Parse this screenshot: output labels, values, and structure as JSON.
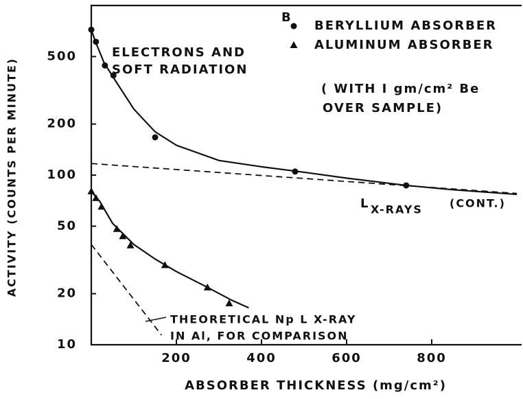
{
  "chart_data": {
    "type": "scatter",
    "panel_label": "B",
    "xlabel": "ABSORBER THICKNESS (mg/cm²)",
    "ylabel": "ACTIVITY (COUNTS PER MINUTE)",
    "xlim": [
      0,
      1000
    ],
    "ylim": [
      10,
      1000
    ],
    "yscale": "log",
    "xticks": [
      200,
      400,
      600,
      800
    ],
    "yticks": [
      10,
      20,
      50,
      100,
      200,
      500
    ],
    "color": "#111111",
    "series": [
      {
        "name": "BERYLLIUM ABSORBER",
        "marker": "circle",
        "x": [
          0,
          11,
          32,
          52,
          150,
          479,
          740
        ],
        "values": [
          720,
          611,
          443,
          387,
          167,
          105,
          87
        ]
      },
      {
        "name": "ALUMINUM ABSORBER",
        "marker": "triangle",
        "x": [
          0,
          11,
          24,
          60,
          74,
          92,
          173,
          273,
          324
        ],
        "values": [
          80,
          73,
          65,
          48,
          43.5,
          38.4,
          29.4,
          21.7,
          17.5
        ]
      }
    ],
    "curves": [
      {
        "style": "solid",
        "x": [
          0,
          10,
          30,
          60,
          100,
          150,
          200,
          300,
          400,
          500,
          600,
          740,
          850,
          1000
        ],
        "values": [
          720,
          610,
          460,
          350,
          245,
          180,
          150,
          122,
          112,
          104,
          96,
          87,
          82,
          77
        ]
      },
      {
        "style": "solid",
        "x": [
          0,
          20,
          50,
          100,
          150,
          200,
          270,
          330,
          370
        ],
        "values": [
          80,
          70,
          52,
          39,
          32,
          27,
          22,
          18.3,
          16.5
        ]
      },
      {
        "style": "dashed",
        "x": [
          0,
          1000
        ],
        "values": [
          117,
          78
        ]
      },
      {
        "style": "dashed",
        "x": [
          0,
          165
        ],
        "values": [
          39,
          11.4
        ]
      }
    ],
    "annotations": {
      "electrons": [
        "ELECTRONS AND",
        "SOFT RADIATION"
      ],
      "legend_note": [
        "( WITH I gm/cm² Be",
        "OVER SAMPLE)"
      ],
      "lxray_l": "L",
      "lxray_rest": "X-RAYS",
      "lxray_cont": "(CONT.)",
      "theoretical": [
        "THEORETICAL Np  L X-RAY",
        "IN Al, FOR COMPARISON"
      ]
    }
  }
}
